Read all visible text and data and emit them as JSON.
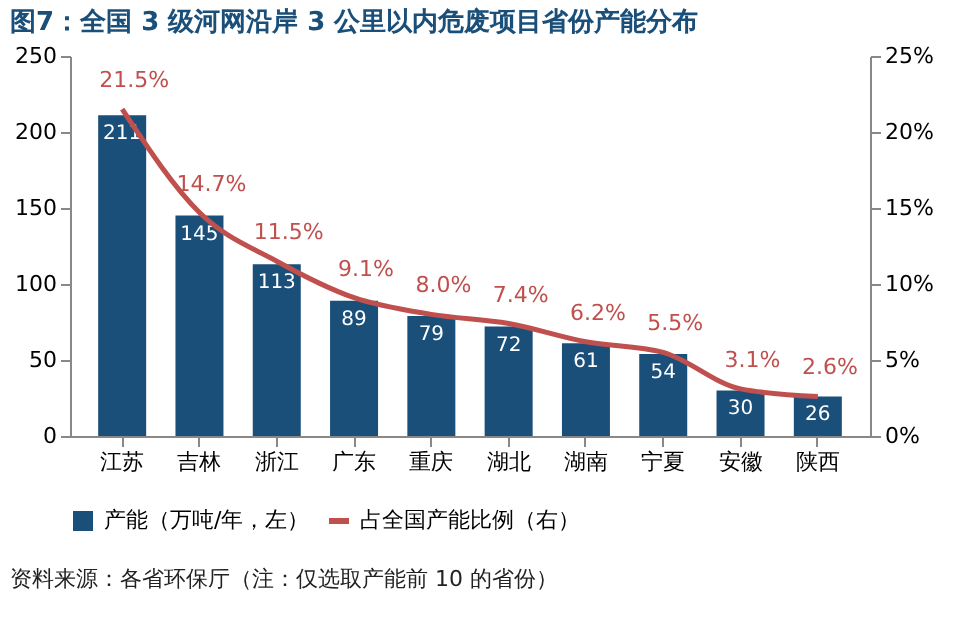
{
  "chart_data": {
    "type": "bar",
    "title": "图7：全国 3 级河网沿岸 3 公里以内危废项目省份产能分布",
    "categories": [
      "江苏",
      "吉林",
      "浙江",
      "广东",
      "重庆",
      "湖北",
      "湖南",
      "宁夏",
      "安徽",
      "陕西"
    ],
    "series": [
      {
        "name": "产能（万吨/年，左）",
        "type": "bar",
        "color": "#1a4f7a",
        "values": [
          211,
          145,
          113,
          89,
          79,
          72,
          61,
          54,
          30,
          26
        ]
      },
      {
        "name": "占全国产能比例（右）",
        "type": "line",
        "axis": "y2",
        "color": "#c0504d",
        "values": [
          21.5,
          14.7,
          11.5,
          9.1,
          8.0,
          7.4,
          6.2,
          5.5,
          3.1,
          2.6
        ],
        "value_labels": [
          "21.5%",
          "14.7%",
          "11.5%",
          "9.1%",
          "8.0%",
          "7.4%",
          "6.2%",
          "5.5%",
          "3.1%",
          "2.6%"
        ]
      }
    ],
    "ylim": [
      0,
      250
    ],
    "yticks": [
      0,
      50,
      100,
      150,
      200,
      250
    ],
    "y2lim": [
      0,
      25
    ],
    "y2ticks": [
      {
        "value": 0,
        "label": "0%"
      },
      {
        "value": 5,
        "label": "5%"
      },
      {
        "value": 10,
        "label": "10%"
      },
      {
        "value": 15,
        "label": "15%"
      },
      {
        "value": 20,
        "label": "20%"
      },
      {
        "value": 25,
        "label": "25%"
      }
    ],
    "data_labels": true,
    "grid": false,
    "legend": "bottom",
    "marker": "none",
    "line_style": "solid",
    "annotations": [
      "资料来源：各省环保厅（注：仅选取产能前 10 的省份）"
    ]
  }
}
